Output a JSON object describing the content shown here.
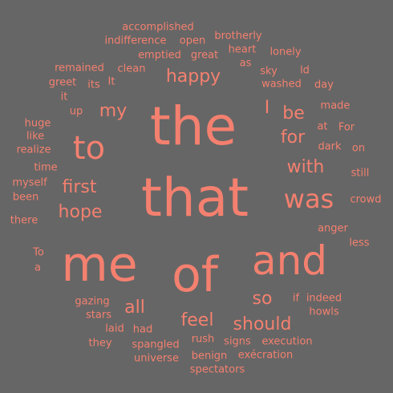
{
  "word_color": "#f4806f",
  "background_color": "#666666",
  "words": [
    {
      "text": "the",
      "weight": 10
    },
    {
      "text": "that",
      "weight": 10
    },
    {
      "text": "of",
      "weight": 9
    },
    {
      "text": "me",
      "weight": 9
    },
    {
      "text": "and",
      "weight": 8
    },
    {
      "text": "to",
      "weight": 7
    },
    {
      "text": "was",
      "weight": 6
    },
    {
      "text": "with",
      "weight": 5
    },
    {
      "text": "be",
      "weight": 5
    },
    {
      "text": "for",
      "weight": 5
    },
    {
      "text": "should",
      "weight": 5
    },
    {
      "text": "feel",
      "weight": 5
    },
    {
      "text": "happy",
      "weight": 5
    },
    {
      "text": "first",
      "weight": 5
    },
    {
      "text": "hope",
      "weight": 5
    },
    {
      "text": "my",
      "weight": 5
    },
    {
      "text": "all",
      "weight": 5
    },
    {
      "text": "so",
      "weight": 5
    },
    {
      "text": "I",
      "weight": 5
    },
    {
      "text": "accomplished",
      "weight": 2
    },
    {
      "text": "indifference",
      "weight": 2
    },
    {
      "text": "open",
      "weight": 2
    },
    {
      "text": "brotherly",
      "weight": 2
    },
    {
      "text": "heart",
      "weight": 2
    },
    {
      "text": "emptied",
      "weight": 2
    },
    {
      "text": "great",
      "weight": 2
    },
    {
      "text": "lonely",
      "weight": 2
    },
    {
      "text": "as",
      "weight": 2
    },
    {
      "text": "remained",
      "weight": 2
    },
    {
      "text": "clean",
      "weight": 2
    },
    {
      "text": "sky",
      "weight": 2
    },
    {
      "text": "ld",
      "weight": 2
    },
    {
      "text": "greet",
      "weight": 2
    },
    {
      "text": "its",
      "weight": 2
    },
    {
      "text": "It",
      "weight": 2
    },
    {
      "text": "washed",
      "weight": 2
    },
    {
      "text": "day",
      "weight": 2
    },
    {
      "text": "it",
      "weight": 2
    },
    {
      "text": "made",
      "weight": 2
    },
    {
      "text": "up",
      "weight": 2
    },
    {
      "text": "huge",
      "weight": 2
    },
    {
      "text": "at",
      "weight": 2
    },
    {
      "text": "For",
      "weight": 2
    },
    {
      "text": "like",
      "weight": 2
    },
    {
      "text": "realize",
      "weight": 2
    },
    {
      "text": "dark",
      "weight": 2
    },
    {
      "text": "on",
      "weight": 2
    },
    {
      "text": "time",
      "weight": 2
    },
    {
      "text": "still",
      "weight": 2
    },
    {
      "text": "myself",
      "weight": 2
    },
    {
      "text": "been",
      "weight": 2
    },
    {
      "text": "crowd",
      "weight": 2
    },
    {
      "text": "there",
      "weight": 2
    },
    {
      "text": "anger",
      "weight": 2
    },
    {
      "text": "less",
      "weight": 2
    },
    {
      "text": "To",
      "weight": 2
    },
    {
      "text": "a",
      "weight": 2
    },
    {
      "text": "if",
      "weight": 2
    },
    {
      "text": "indeed",
      "weight": 2
    },
    {
      "text": "gazing",
      "weight": 2
    },
    {
      "text": "howls",
      "weight": 2
    },
    {
      "text": "stars",
      "weight": 2
    },
    {
      "text": "laid",
      "weight": 2
    },
    {
      "text": "had",
      "weight": 2
    },
    {
      "text": "rush",
      "weight": 2
    },
    {
      "text": "signs",
      "weight": 2
    },
    {
      "text": "execution",
      "weight": 2
    },
    {
      "text": "they",
      "weight": 2
    },
    {
      "text": "spangled",
      "weight": 2
    },
    {
      "text": "universe",
      "weight": 2
    },
    {
      "text": "benign",
      "weight": 2
    },
    {
      "text": "exécration",
      "weight": 2
    },
    {
      "text": "spectators",
      "weight": 2
    }
  ]
}
